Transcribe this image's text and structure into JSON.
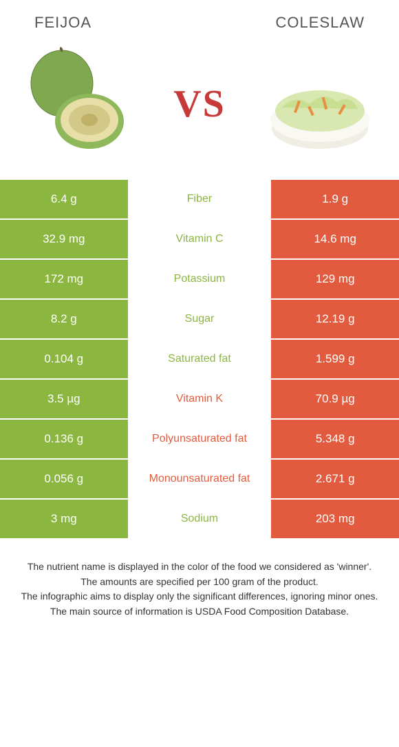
{
  "colors": {
    "left": "#8bb63f",
    "right": "#e35b3e",
    "vs": "#c73a3a"
  },
  "header": {
    "left": "Feijoa",
    "right": "Coleslaw",
    "vs": "VS"
  },
  "rows": [
    {
      "left": "6.4 g",
      "label": "Fiber",
      "right": "1.9 g",
      "winner": "left"
    },
    {
      "left": "32.9 mg",
      "label": "Vitamin C",
      "right": "14.6 mg",
      "winner": "left"
    },
    {
      "left": "172 mg",
      "label": "Potassium",
      "right": "129 mg",
      "winner": "left"
    },
    {
      "left": "8.2 g",
      "label": "Sugar",
      "right": "12.19 g",
      "winner": "left"
    },
    {
      "left": "0.104 g",
      "label": "Saturated fat",
      "right": "1.599 g",
      "winner": "left"
    },
    {
      "left": "3.5 µg",
      "label": "Vitamin K",
      "right": "70.9 µg",
      "winner": "right"
    },
    {
      "left": "0.136 g",
      "label": "Polyunsaturated fat",
      "right": "5.348 g",
      "winner": "right"
    },
    {
      "left": "0.056 g",
      "label": "Monounsaturated fat",
      "right": "2.671 g",
      "winner": "right"
    },
    {
      "left": "3 mg",
      "label": "Sodium",
      "right": "203 mg",
      "winner": "left"
    }
  ],
  "footer": {
    "line1": "The nutrient name is displayed in the color of the food we considered as 'winner'.",
    "line2": "The amounts are specified per 100 gram of the product.",
    "line3": "The infographic aims to display only the significant differences, ignoring minor ones.",
    "line4": "The main source of information is USDA Food Composition Database."
  }
}
